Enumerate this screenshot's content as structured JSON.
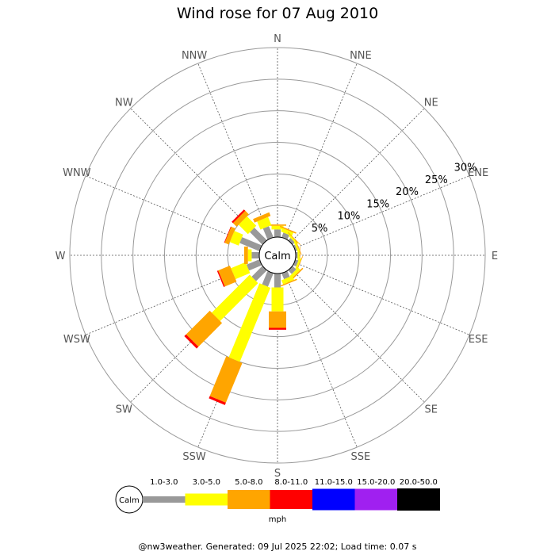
{
  "page": {
    "title": "Wind rose for 07 Aug 2010",
    "footer": "@nw3weather. Generated: 09 Jul 2025 22:02; Load time: 0.07 s"
  },
  "chart_data": {
    "type": "wind-rose",
    "title": "Wind rose for 07 Aug 2010",
    "calm_label": "Calm",
    "unit_label": "mph",
    "radial_ticks": [
      "5%",
      "10%",
      "15%",
      "20%",
      "25%",
      "30%"
    ],
    "radial_values": [
      5,
      10,
      15,
      20,
      25,
      30
    ],
    "radial_max": 30,
    "directions": [
      "N",
      "NNE",
      "NE",
      "ENE",
      "E",
      "ESE",
      "SE",
      "SSE",
      "S",
      "SSW",
      "SW",
      "WSW",
      "W",
      "WNW",
      "NW",
      "NNW"
    ],
    "speed_bins": [
      {
        "label": "1.0-3.0",
        "color": "#999999"
      },
      {
        "label": "3.0-5.0",
        "color": "#ffff00"
      },
      {
        "label": "5.0-8.0",
        "color": "#ffa500"
      },
      {
        "label": "8.0-11.0",
        "color": "#ff0000"
      },
      {
        "label": "11.0-15.0",
        "color": "#0000ff"
      },
      {
        "label": "15.0-20.0",
        "color": "#a020f0"
      },
      {
        "label": "20.0-50.0",
        "color": "#000000"
      }
    ],
    "cumulative_percent": {
      "N": [
        1.2,
        1.8,
        2.0,
        2.0,
        2.0,
        2.0,
        2.0
      ],
      "NNE": [
        0.8,
        1.4,
        1.6,
        1.6,
        1.6,
        1.6,
        1.6
      ],
      "NE": [
        0.5,
        0.8,
        0.9,
        0.9,
        0.9,
        0.9,
        0.9
      ],
      "ENE": [
        0.3,
        0.6,
        0.7,
        0.7,
        0.7,
        0.7,
        0.7
      ],
      "E": [
        0.3,
        0.6,
        0.7,
        0.7,
        0.7,
        0.7,
        0.7
      ],
      "ESE": [
        0.5,
        0.8,
        0.9,
        0.9,
        0.9,
        0.9,
        0.9
      ],
      "SE": [
        0.8,
        1.3,
        1.5,
        1.5,
        1.5,
        1.5,
        1.5
      ],
      "SSE": [
        1.0,
        1.7,
        1.9,
        1.9,
        1.9,
        1.9,
        1.9
      ],
      "S": [
        2.2,
        6.0,
        8.6,
        8.9,
        8.9,
        8.9,
        8.9
      ],
      "SSW": [
        2.3,
        15.0,
        21.8,
        22.2,
        22.2,
        22.2,
        22.2
      ],
      "SW": [
        2.4,
        10.9,
        16.2,
        16.6,
        16.6,
        16.6,
        16.6
      ],
      "WSW": [
        2.2,
        4.7,
        6.7,
        6.9,
        6.9,
        6.9,
        6.9
      ],
      "W": [
        1.2,
        1.8,
        2.4,
        2.4,
        2.4,
        2.4,
        2.4
      ],
      "WNW": [
        3.4,
        4.9,
        5.6,
        5.7,
        5.7,
        5.7,
        5.7
      ],
      "NW": [
        2.8,
        4.9,
        5.7,
        6.0,
        6.0,
        6.0,
        6.0
      ],
      "NNW": [
        1.9,
        3.3,
        3.9,
        3.9,
        3.9,
        3.9,
        3.9
      ]
    }
  }
}
